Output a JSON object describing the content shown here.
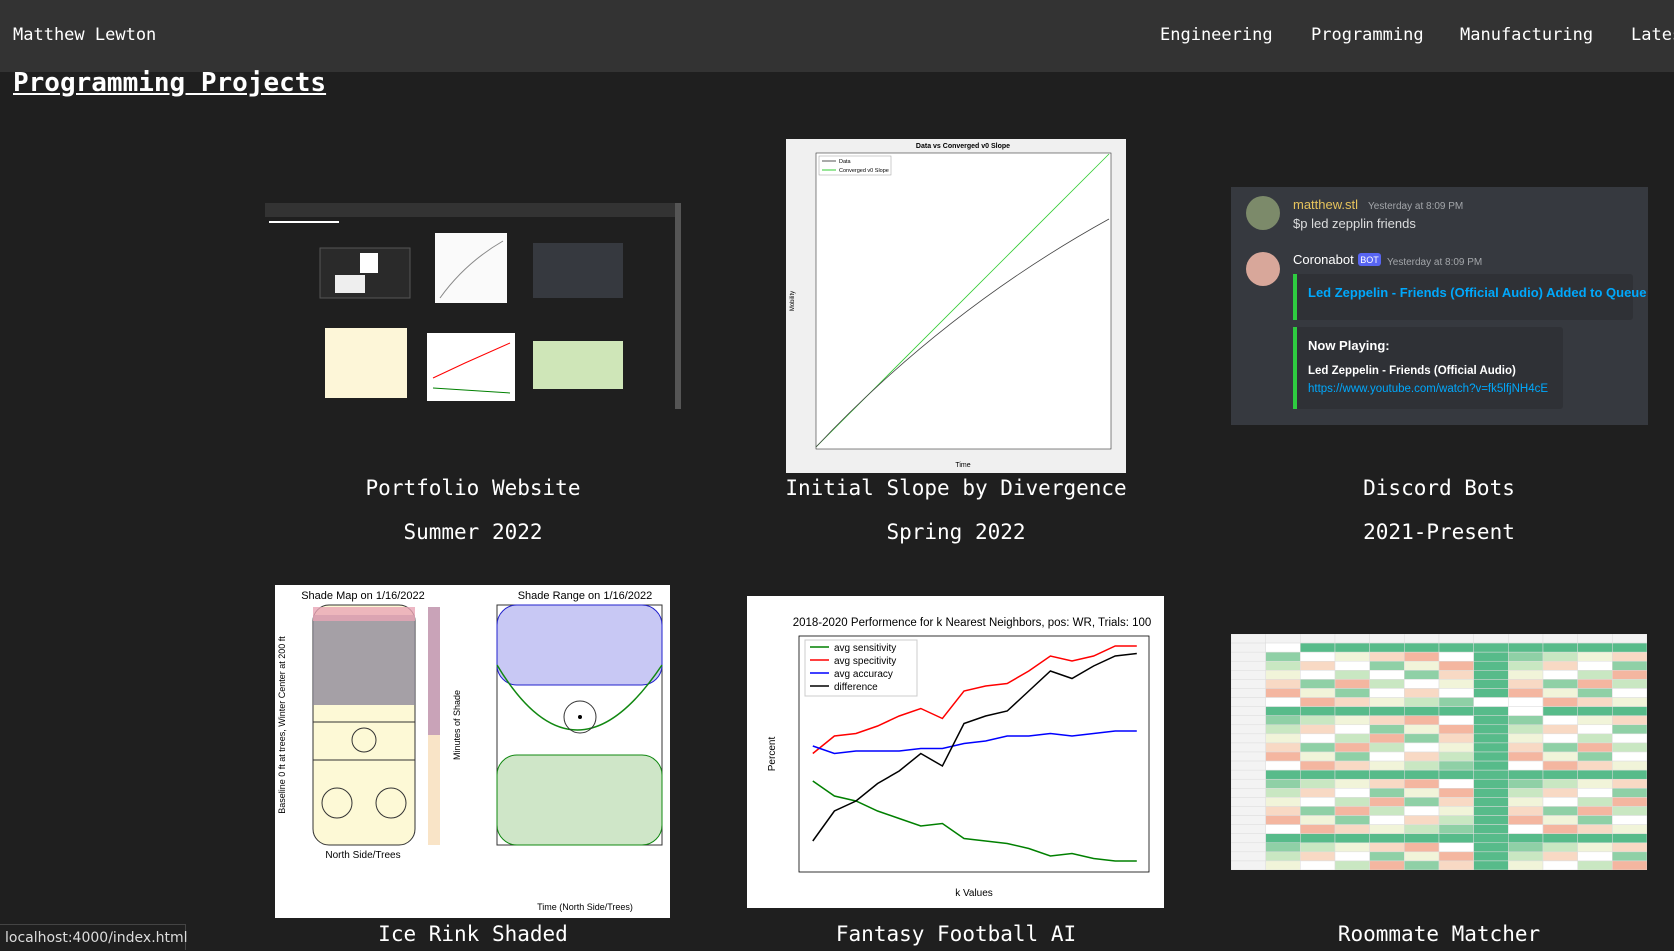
{
  "header": {
    "brand": "Matthew Lewton",
    "nav": [
      "Engineering",
      "Programming",
      "Manufacturing",
      "Latest Projects"
    ]
  },
  "heading": "Programming Projects",
  "projects": [
    {
      "title": "Portfolio Website",
      "date": "Summer 2022"
    },
    {
      "title": "Initial Slope by Divergence",
      "date": "Spring 2022"
    },
    {
      "title": "Discord Bots",
      "date": "2021-Present"
    },
    {
      "title": "Ice Rink Shaded"
    },
    {
      "title": "Fantasy Football AI"
    },
    {
      "title": "Roommate Matcher"
    }
  ],
  "thumbnails": {
    "slope": {
      "title": "Data vs Converged v0 Slope",
      "legend": [
        "Data",
        "Converged v0 Slope"
      ],
      "xlabel": "Time",
      "ylabel": "Mobility"
    },
    "discord": {
      "user": "matthew.stl",
      "time": "Yesterday at 8:09 PM",
      "message": "$p led zepplin friends",
      "bot": "Coronabot",
      "badge": "BOT",
      "bot_time": "Yesterday at 8:09 PM",
      "queued": "Led Zeppelin - Friends (Official Audio) Added to Queue",
      "now_playing": "Now Playing:",
      "song": "Led Zeppelin - Friends (Official Audio)",
      "link": "https://www.youtube.com/watch?v=fk5lfjNH4cE"
    },
    "rink": {
      "left_title": "Shade Map on 1/16/2022",
      "right_title": "Shade Range on 1/16/2022",
      "left_xlabel": "North Side/Trees",
      "right_xlabel": "Time (North Side/Trees)",
      "ylabel": "Baseline 0 ft at trees, Winter Center at 200 ft",
      "cbar_label": "Minutes of Shade"
    },
    "fantasy": {
      "title": "2018-2020 Performence for k Nearest Neighbors, pos: WR, Trials: 100",
      "legend": [
        "avg sensitivity",
        "avg specitivity",
        "avg accuracy",
        "difference"
      ],
      "xlabel": "k Values",
      "ylabel": "Percent"
    }
  },
  "status_bar": "localhost:4000/index.html"
}
